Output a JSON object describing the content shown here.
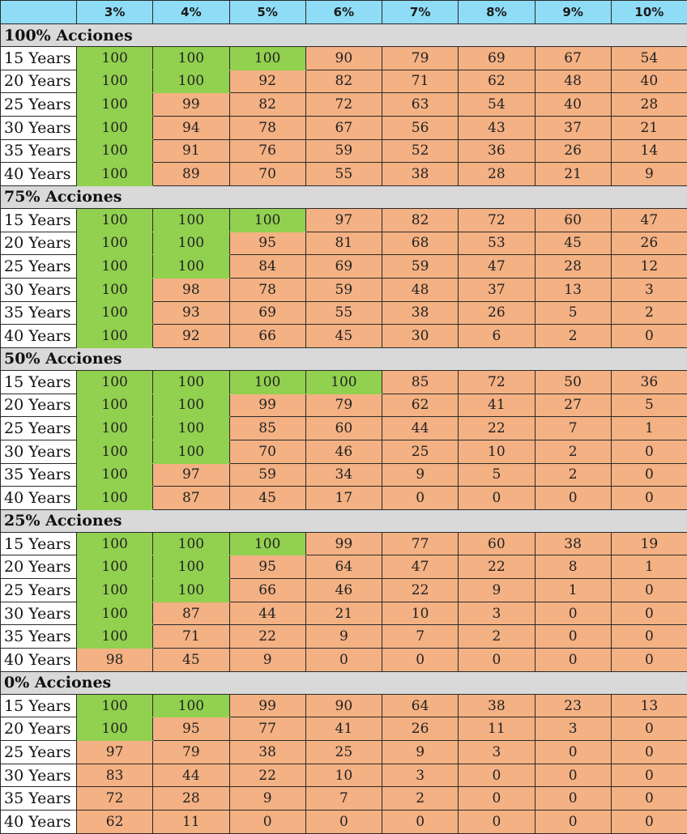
{
  "header": {
    "rates": [
      "3%",
      "4%",
      "5%",
      "6%",
      "7%",
      "8%",
      "9%",
      "10%"
    ]
  },
  "colors": {
    "success": "#92d050",
    "failure": "#f4b183",
    "header": "#8fdcf6",
    "group": "#d9d9d9"
  },
  "groups": [
    {
      "title": "100% Acciones",
      "rows": [
        {
          "label": "15 Years",
          "values": [
            "100",
            "100",
            "100",
            "90",
            "79",
            "69",
            "67",
            "54"
          ]
        },
        {
          "label": "20 Years",
          "values": [
            "100",
            "100",
            "92",
            "82",
            "71",
            "62",
            "48",
            "40"
          ]
        },
        {
          "label": "25 Years",
          "values": [
            "100",
            "99",
            "82",
            "72",
            "63",
            "54",
            "40",
            "28"
          ]
        },
        {
          "label": "30 Years",
          "values": [
            "100",
            "94",
            "78",
            "67",
            "56",
            "43",
            "37",
            "21"
          ]
        },
        {
          "label": "35 Years",
          "values": [
            "100",
            "91",
            "76",
            "59",
            "52",
            "36",
            "26",
            "14"
          ]
        },
        {
          "label": "40 Years",
          "values": [
            "100",
            "89",
            "70",
            "55",
            "38",
            "28",
            "21",
            "9"
          ]
        }
      ]
    },
    {
      "title": "75% Acciones",
      "rows": [
        {
          "label": "15 Years",
          "values": [
            "100",
            "100",
            "100",
            "97",
            "82",
            "72",
            "60",
            "47"
          ]
        },
        {
          "label": "20 Years",
          "values": [
            "100",
            "100",
            "95",
            "81",
            "68",
            "53",
            "45",
            "26"
          ]
        },
        {
          "label": "25 Years",
          "values": [
            "100",
            "100",
            "84",
            "69",
            "59",
            "47",
            "28",
            "12"
          ]
        },
        {
          "label": "30 Years",
          "values": [
            "100",
            "98",
            "78",
            "59",
            "48",
            "37",
            "13",
            "3"
          ]
        },
        {
          "label": "35 Years",
          "values": [
            "100",
            "93",
            "69",
            "55",
            "38",
            "26",
            "5",
            "2"
          ]
        },
        {
          "label": "40 Years",
          "values": [
            "100",
            "92",
            "66",
            "45",
            "30",
            "6",
            "2",
            "0"
          ]
        }
      ]
    },
    {
      "title": "50% Acciones",
      "rows": [
        {
          "label": "15 Years",
          "values": [
            "100",
            "100",
            "100",
            "100",
            "85",
            "72",
            "50",
            "36"
          ]
        },
        {
          "label": "20 Years",
          "values": [
            "100",
            "100",
            "99",
            "79",
            "62",
            "41",
            "27",
            "5"
          ]
        },
        {
          "label": "25 Years",
          "values": [
            "100",
            "100",
            "85",
            "60",
            "44",
            "22",
            "7",
            "1"
          ]
        },
        {
          "label": "30 Years",
          "values": [
            "100",
            "100",
            "70",
            "46",
            "25",
            "10",
            "2",
            "0"
          ]
        },
        {
          "label": "35 Years",
          "values": [
            "100",
            "97",
            "59",
            "34",
            "9",
            "5",
            "2",
            "0"
          ]
        },
        {
          "label": "40 Years",
          "values": [
            "100",
            "87",
            "45",
            "17",
            "0",
            "0",
            "0",
            "0"
          ]
        }
      ]
    },
    {
      "title": "25% Acciones",
      "rows": [
        {
          "label": "15 Years",
          "values": [
            "100",
            "100",
            "100",
            "99",
            "77",
            "60",
            "38",
            "19"
          ]
        },
        {
          "label": "20 Years",
          "values": [
            "100",
            "100",
            "95",
            "64",
            "47",
            "22",
            "8",
            "1"
          ]
        },
        {
          "label": "25 Years",
          "values": [
            "100",
            "100",
            "66",
            "46",
            "22",
            "9",
            "1",
            "0"
          ]
        },
        {
          "label": "30 Years",
          "values": [
            "100",
            "87",
            "44",
            "21",
            "10",
            "3",
            "0",
            "0"
          ]
        },
        {
          "label": "35 Years",
          "values": [
            "100",
            "71",
            "22",
            "9",
            "7",
            "2",
            "0",
            "0"
          ]
        },
        {
          "label": "40 Years",
          "values": [
            "98",
            "45",
            "9",
            "0",
            "0",
            "0",
            "0",
            "0"
          ]
        }
      ]
    },
    {
      "title": "0% Acciones",
      "rows": [
        {
          "label": "15 Years",
          "values": [
            "100",
            "100",
            "99",
            "90",
            "64",
            "38",
            "23",
            "13"
          ]
        },
        {
          "label": "20 Years",
          "values": [
            "100",
            "95",
            "77",
            "41",
            "26",
            "11",
            "3",
            "0"
          ]
        },
        {
          "label": "25 Years",
          "values": [
            "97",
            "79",
            "38",
            "25",
            "9",
            "3",
            "0",
            "0"
          ]
        },
        {
          "label": "30 Years",
          "values": [
            "83",
            "44",
            "22",
            "10",
            "3",
            "0",
            "0",
            "0"
          ]
        },
        {
          "label": "35 Years",
          "values": [
            "72",
            "28",
            "9",
            "7",
            "2",
            "0",
            "0",
            "0"
          ]
        },
        {
          "label": "40 Years",
          "values": [
            "62",
            "11",
            "0",
            "0",
            "0",
            "0",
            "0",
            "0"
          ]
        }
      ]
    }
  ]
}
